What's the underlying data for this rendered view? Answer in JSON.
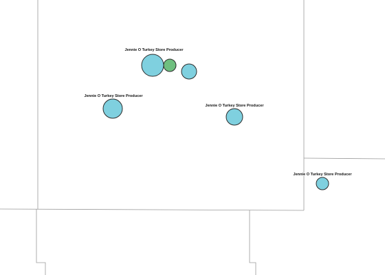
{
  "colors": {
    "background": "#ffffff",
    "border": "#9a9a9a",
    "marker_blue": "#7fd0df",
    "marker_green": "#6fbf7f",
    "marker_stroke": "#2b2b2b"
  },
  "markers": [
    {
      "id": "m1",
      "label": "Jennie O Turkey Store Producer",
      "color": "marker_blue"
    },
    {
      "id": "m2",
      "label": "",
      "color": "marker_green"
    },
    {
      "id": "m3",
      "label": "",
      "color": "marker_blue"
    },
    {
      "id": "m4",
      "label": "Jennie O Turkey Store Producer",
      "color": "marker_blue"
    },
    {
      "id": "m5",
      "label": "Jennie O Turkey Store Producer",
      "color": "marker_blue"
    },
    {
      "id": "m6",
      "label": "Jennie O Turkey Store Producer",
      "color": "marker_blue"
    }
  ]
}
